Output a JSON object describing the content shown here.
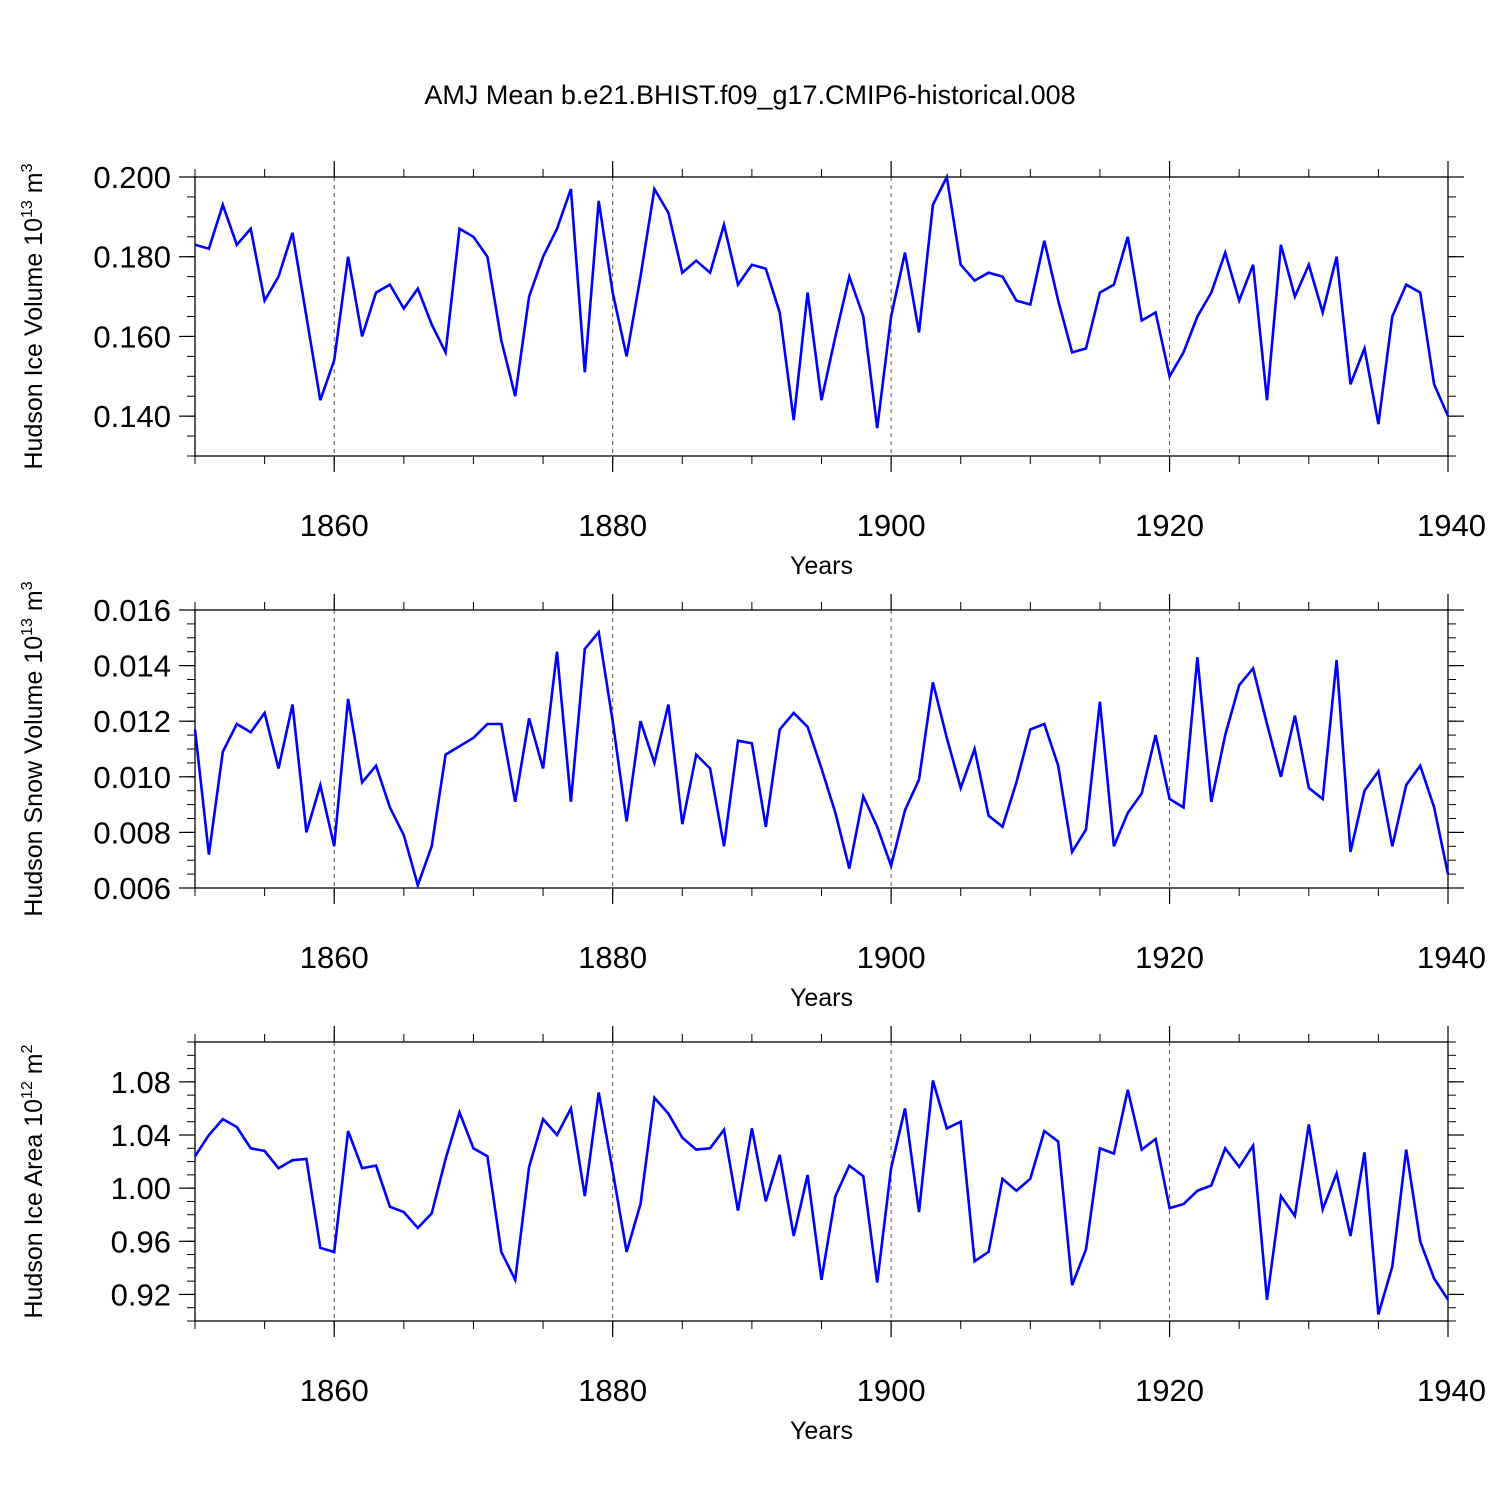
{
  "title": "AMJ Mean b.e21.BHIST.f09_g17.CMIP6-historical.008",
  "colors": {
    "line": "#0000ff",
    "axis": "#000000",
    "grid": "#555555"
  },
  "chart_data": [
    {
      "type": "line",
      "name": "ice-volume",
      "ylabel": "Hudson Ice Volume",
      "yunit_base": "10",
      "yunit_exp": "13",
      "yunit_tail": " m",
      "yunit_tail_exp": "3",
      "xlabel": "Years",
      "xlim": [
        1850,
        1940
      ],
      "ylim": [
        0.13,
        0.2
      ],
      "yticks": [
        0.14,
        0.16,
        0.18,
        0.2
      ],
      "ytick_labels": [
        "0.140",
        "0.160",
        "0.180",
        "0.200"
      ],
      "yminor": 0.005,
      "xticks": [
        1860,
        1880,
        1900,
        1920,
        1940
      ],
      "xtick_labels": [
        "1860",
        "1880",
        "1900",
        "1920",
        "1940"
      ],
      "grid_x": [
        1860,
        1880,
        1900,
        1920
      ],
      "x_start": 1850,
      "values": [
        0.183,
        0.182,
        0.193,
        0.183,
        0.187,
        0.169,
        0.175,
        0.186,
        0.165,
        0.144,
        0.154,
        0.18,
        0.16,
        0.171,
        0.173,
        0.167,
        0.172,
        0.163,
        0.156,
        0.187,
        0.185,
        0.18,
        0.159,
        0.145,
        0.17,
        0.18,
        0.187,
        0.197,
        0.151,
        0.194,
        0.171,
        0.155,
        0.175,
        0.197,
        0.191,
        0.176,
        0.179,
        0.176,
        0.188,
        0.173,
        0.178,
        0.177,
        0.166,
        0.139,
        0.171,
        0.144,
        0.16,
        0.175,
        0.165,
        0.137,
        0.165,
        0.181,
        0.161,
        0.193,
        0.2,
        0.178,
        0.174,
        0.176,
        0.175,
        0.169,
        0.168,
        0.184,
        0.169,
        0.156,
        0.157,
        0.171,
        0.173,
        0.185,
        0.164,
        0.166,
        0.15,
        0.156,
        0.165,
        0.171,
        0.181,
        0.169,
        0.178,
        0.144,
        0.183,
        0.17,
        0.178,
        0.166,
        0.18,
        0.148,
        0.157,
        0.138,
        0.165,
        0.173,
        0.171,
        0.148,
        0.14
      ]
    },
    {
      "type": "line",
      "name": "snow-volume",
      "ylabel": "Hudson Snow Volume",
      "yunit_base": "10",
      "yunit_exp": "13",
      "yunit_tail": " m",
      "yunit_tail_exp": "3",
      "xlabel": "Years",
      "xlim": [
        1850,
        1940
      ],
      "ylim": [
        0.006,
        0.016
      ],
      "yticks": [
        0.006,
        0.008,
        0.01,
        0.012,
        0.014,
        0.016
      ],
      "ytick_labels": [
        "0.006",
        "0.008",
        "0.010",
        "0.012",
        "0.014",
        "0.016"
      ],
      "yminor": 0.0005,
      "xticks": [
        1860,
        1880,
        1900,
        1920,
        1940
      ],
      "xtick_labels": [
        "1860",
        "1880",
        "1900",
        "1920",
        "1940"
      ],
      "grid_x": [
        1860,
        1880,
        1900,
        1920
      ],
      "x_start": 1850,
      "values": [
        0.0117,
        0.0072,
        0.0109,
        0.0119,
        0.0116,
        0.0123,
        0.0103,
        0.0126,
        0.008,
        0.0097,
        0.0075,
        0.0128,
        0.0098,
        0.0104,
        0.0089,
        0.0079,
        0.0061,
        0.0075,
        0.0108,
        0.0111,
        0.0114,
        0.0119,
        0.0119,
        0.0091,
        0.0121,
        0.0103,
        0.0145,
        0.0091,
        0.0146,
        0.0152,
        0.012,
        0.0084,
        0.012,
        0.0105,
        0.0126,
        0.0083,
        0.0108,
        0.0103,
        0.0075,
        0.0113,
        0.0112,
        0.0082,
        0.0117,
        0.0123,
        0.0118,
        0.0103,
        0.0087,
        0.0067,
        0.0093,
        0.0082,
        0.0068,
        0.0088,
        0.0099,
        0.0134,
        0.0114,
        0.0096,
        0.011,
        0.0086,
        0.0082,
        0.0098,
        0.0117,
        0.0119,
        0.0104,
        0.0073,
        0.0081,
        0.0127,
        0.0075,
        0.0087,
        0.0094,
        0.0115,
        0.0092,
        0.0089,
        0.0143,
        0.0091,
        0.0115,
        0.0133,
        0.0139,
        0.0119,
        0.01,
        0.0122,
        0.0096,
        0.0092,
        0.0142,
        0.0073,
        0.0095,
        0.0102,
        0.0075,
        0.0097,
        0.0104,
        0.0089,
        0.0065
      ]
    },
    {
      "type": "line",
      "name": "ice-area",
      "ylabel": "Hudson Ice Area",
      "yunit_base": "10",
      "yunit_exp": "12",
      "yunit_tail": " m",
      "yunit_tail_exp": "2",
      "xlabel": "Years",
      "xlim": [
        1850,
        1940
      ],
      "ylim": [
        0.9,
        1.11
      ],
      "yticks": [
        0.92,
        0.96,
        1.0,
        1.04,
        1.08
      ],
      "ytick_labels": [
        "0.92",
        "0.96",
        "1.00",
        "1.04",
        "1.08"
      ],
      "yminor": 0.01,
      "xticks": [
        1860,
        1880,
        1900,
        1920,
        1940
      ],
      "xtick_labels": [
        "1860",
        "1880",
        "1900",
        "1920",
        "1940"
      ],
      "grid_x": [
        1860,
        1880,
        1900,
        1920
      ],
      "x_start": 1850,
      "values": [
        1.024,
        1.04,
        1.052,
        1.046,
        1.03,
        1.028,
        1.015,
        1.021,
        1.022,
        0.955,
        0.952,
        1.043,
        1.015,
        1.017,
        0.986,
        0.982,
        0.97,
        0.981,
        1.022,
        1.057,
        1.03,
        1.024,
        0.952,
        0.931,
        1.016,
        1.052,
        1.04,
        1.06,
        0.994,
        1.072,
        1.013,
        0.952,
        0.988,
        1.068,
        1.056,
        1.038,
        1.029,
        1.03,
        1.044,
        0.983,
        1.045,
        0.99,
        1.025,
        0.964,
        1.01,
        0.931,
        0.994,
        1.017,
        1.009,
        0.929,
        1.015,
        1.06,
        0.982,
        1.081,
        1.045,
        1.05,
        0.945,
        0.952,
        1.007,
        0.998,
        1.007,
        1.043,
        1.035,
        0.927,
        0.954,
        1.03,
        1.026,
        1.074,
        1.029,
        1.037,
        0.985,
        0.988,
        0.998,
        1.002,
        1.03,
        1.016,
        1.032,
        0.916,
        0.994,
        0.979,
        1.048,
        0.984,
        1.011,
        0.964,
        1.027,
        0.905,
        0.941,
        1.029,
        0.96,
        0.932,
        0.916
      ]
    }
  ]
}
